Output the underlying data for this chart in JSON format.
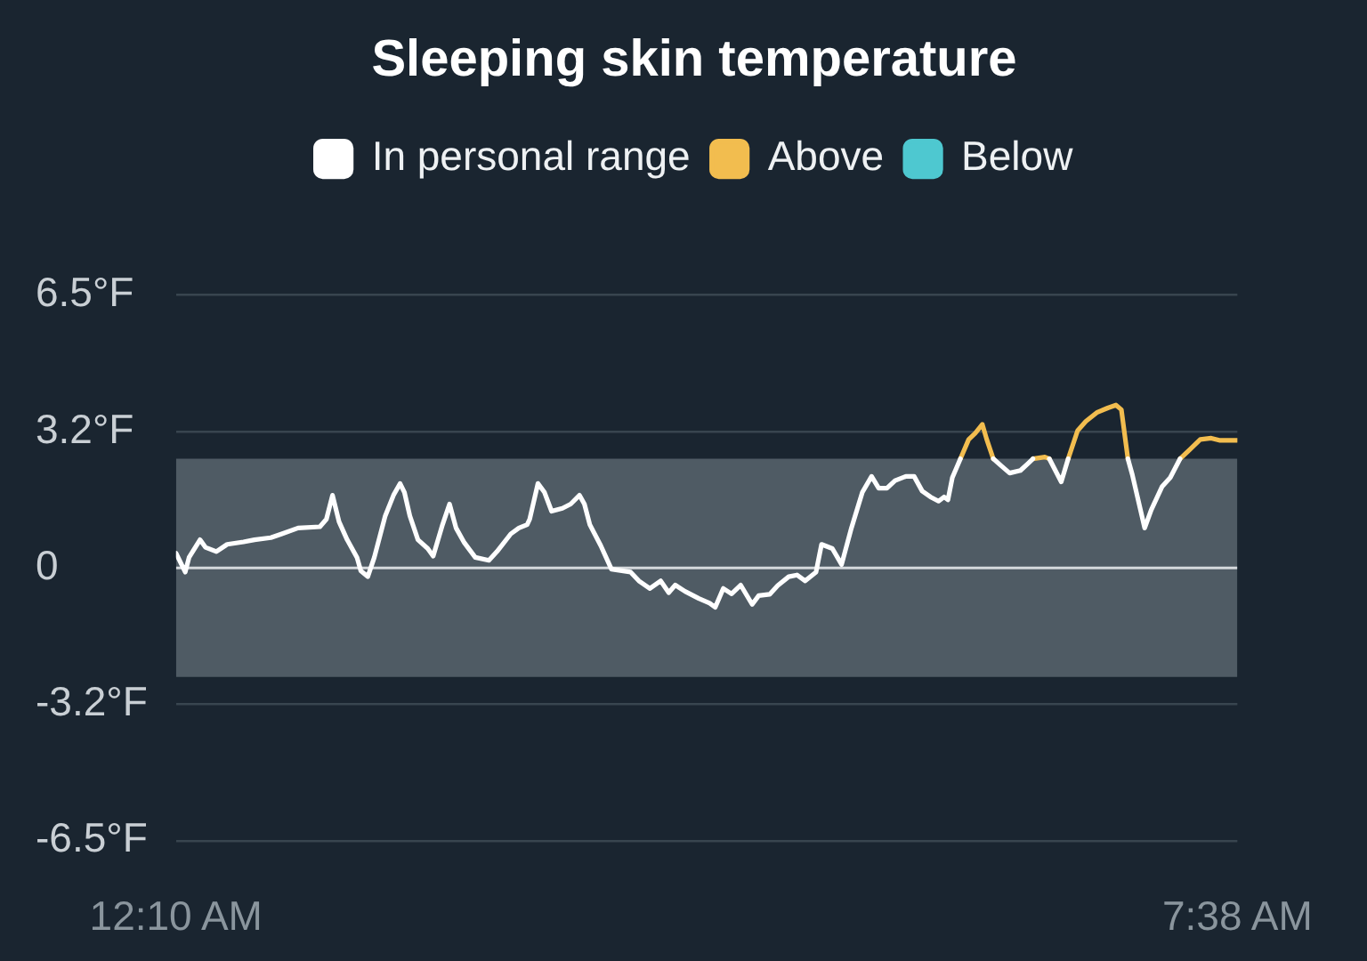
{
  "chart_data": {
    "type": "line",
    "title": "Sleeping skin temperature",
    "legend": "top",
    "grid": "y",
    "xlim": [
      0.167,
      7.633
    ],
    "xticks": [
      {
        "value": 0.167,
        "label": "12:10 AM"
      },
      {
        "value": 7.633,
        "label": "7:38 AM"
      }
    ],
    "ylim": [
      -6.5,
      6.5
    ],
    "yticks": [
      {
        "value": 6.5,
        "label": "6.5°F"
      },
      {
        "value": 3.25,
        "label": "3.2°F"
      },
      0,
      {
        "value": -3.25,
        "label": "-3.2°F"
      },
      {
        "value": -6.5,
        "label": "-6.5°F"
      }
    ],
    "bands": [
      {
        "axis": "y",
        "from": -2.6,
        "to": 2.6,
        "color": "#4f5b64"
      }
    ],
    "ref_lines": [
      {
        "axis": "y",
        "value": 0,
        "color": "#d5d9dc"
      }
    ],
    "series": [
      {
        "name": "In personal range",
        "color": "#ffffff",
        "x": [
          0.167,
          0.232,
          0.259,
          0.336,
          0.374,
          0.451,
          0.527,
          0.642,
          0.719,
          0.834,
          0.911,
          1.026,
          1.179,
          1.225,
          1.268,
          1.314,
          1.371,
          1.44,
          1.467,
          1.516,
          1.562,
          1.639,
          1.697,
          1.743,
          1.774,
          1.812,
          1.869,
          1.938,
          1.976,
          2.042,
          2.091,
          2.137,
          2.195,
          2.272,
          2.368,
          2.425,
          2.522,
          2.579,
          2.637,
          2.655,
          2.713,
          2.759,
          2.809,
          2.885,
          2.943,
          3.005,
          3.04,
          3.078,
          3.155,
          3.23,
          3.365,
          3.423,
          3.5,
          3.576,
          3.633,
          3.679,
          3.748,
          3.845,
          3.921,
          3.96,
          4.017,
          4.075,
          4.139,
          4.22,
          4.266,
          4.343,
          4.4,
          4.477,
          4.535,
          4.593,
          4.669,
          4.708,
          4.784,
          4.849,
          4.918,
          4.995,
          5.06,
          5.11,
          5.168,
          5.225,
          5.301,
          5.359,
          5.416,
          5.474,
          5.531,
          5.57,
          5.597,
          5.628,
          5.685,
          5.8,
          5.916,
          5.973,
          6.031,
          6.107,
          6.164,
          6.195,
          6.24,
          6.31,
          6.394,
          6.443,
          6.65,
          6.863,
          6.894,
          6.981,
          7.027,
          7.104,
          7.161,
          7.23
        ],
        "values": [
          0.35,
          -0.1,
          0.25,
          0.67,
          0.49,
          0.39,
          0.56,
          0.62,
          0.67,
          0.72,
          0.81,
          0.95,
          0.98,
          1.16,
          1.73,
          1.1,
          0.67,
          0.25,
          -0.07,
          -0.21,
          0.25,
          1.24,
          1.73,
          2.01,
          1.8,
          1.24,
          0.67,
          0.46,
          0.28,
          1.03,
          1.52,
          0.95,
          0.6,
          0.25,
          0.18,
          0.39,
          0.81,
          0.95,
          1.03,
          1.16,
          2.01,
          1.8,
          1.35,
          1.42,
          1.52,
          1.73,
          1.52,
          1.03,
          0.53,
          -0.03,
          -0.1,
          -0.31,
          -0.49,
          -0.31,
          -0.59,
          -0.41,
          -0.56,
          -0.73,
          -0.84,
          -0.94,
          -0.49,
          -0.62,
          -0.41,
          -0.87,
          -0.66,
          -0.63,
          -0.42,
          -0.21,
          -0.17,
          -0.31,
          -0.1,
          0.56,
          0.46,
          0.08,
          0.95,
          1.8,
          2.18,
          1.9,
          1.9,
          2.08,
          2.18,
          2.18,
          1.83,
          1.69,
          1.59,
          1.69,
          1.62,
          2.15,
          2.6,
          null,
          2.6,
          2.43,
          2.26,
          2.32,
          2.5,
          2.6,
          null,
          2.6,
          2.05,
          2.6,
          null,
          2.6,
          2.22,
          0.95,
          1.38,
          1.94,
          2.15,
          2.6
        ]
      },
      {
        "name": "Above",
        "color": "#f2bd4f",
        "x": [
          5.685,
          5.743,
          5.789,
          5.839,
          5.87,
          5.916,
          6.0,
          6.195,
          6.279,
          6.31,
          6.35,
          6.443,
          6.509,
          6.567,
          6.644,
          6.721,
          6.779,
          6.817,
          6.863,
          7.0,
          7.23,
          7.296,
          7.372,
          7.449,
          7.506,
          7.633
        ],
        "values": [
          2.6,
          3.06,
          3.21,
          3.42,
          3.06,
          2.6,
          null,
          2.6,
          2.64,
          2.6,
          null,
          2.6,
          3.27,
          3.49,
          3.7,
          3.81,
          3.88,
          3.77,
          2.6,
          null,
          2.6,
          2.81,
          3.06,
          3.09,
          3.04,
          3.04
        ]
      },
      {
        "name": "Below",
        "color": "#4ec8d0"
      }
    ]
  }
}
